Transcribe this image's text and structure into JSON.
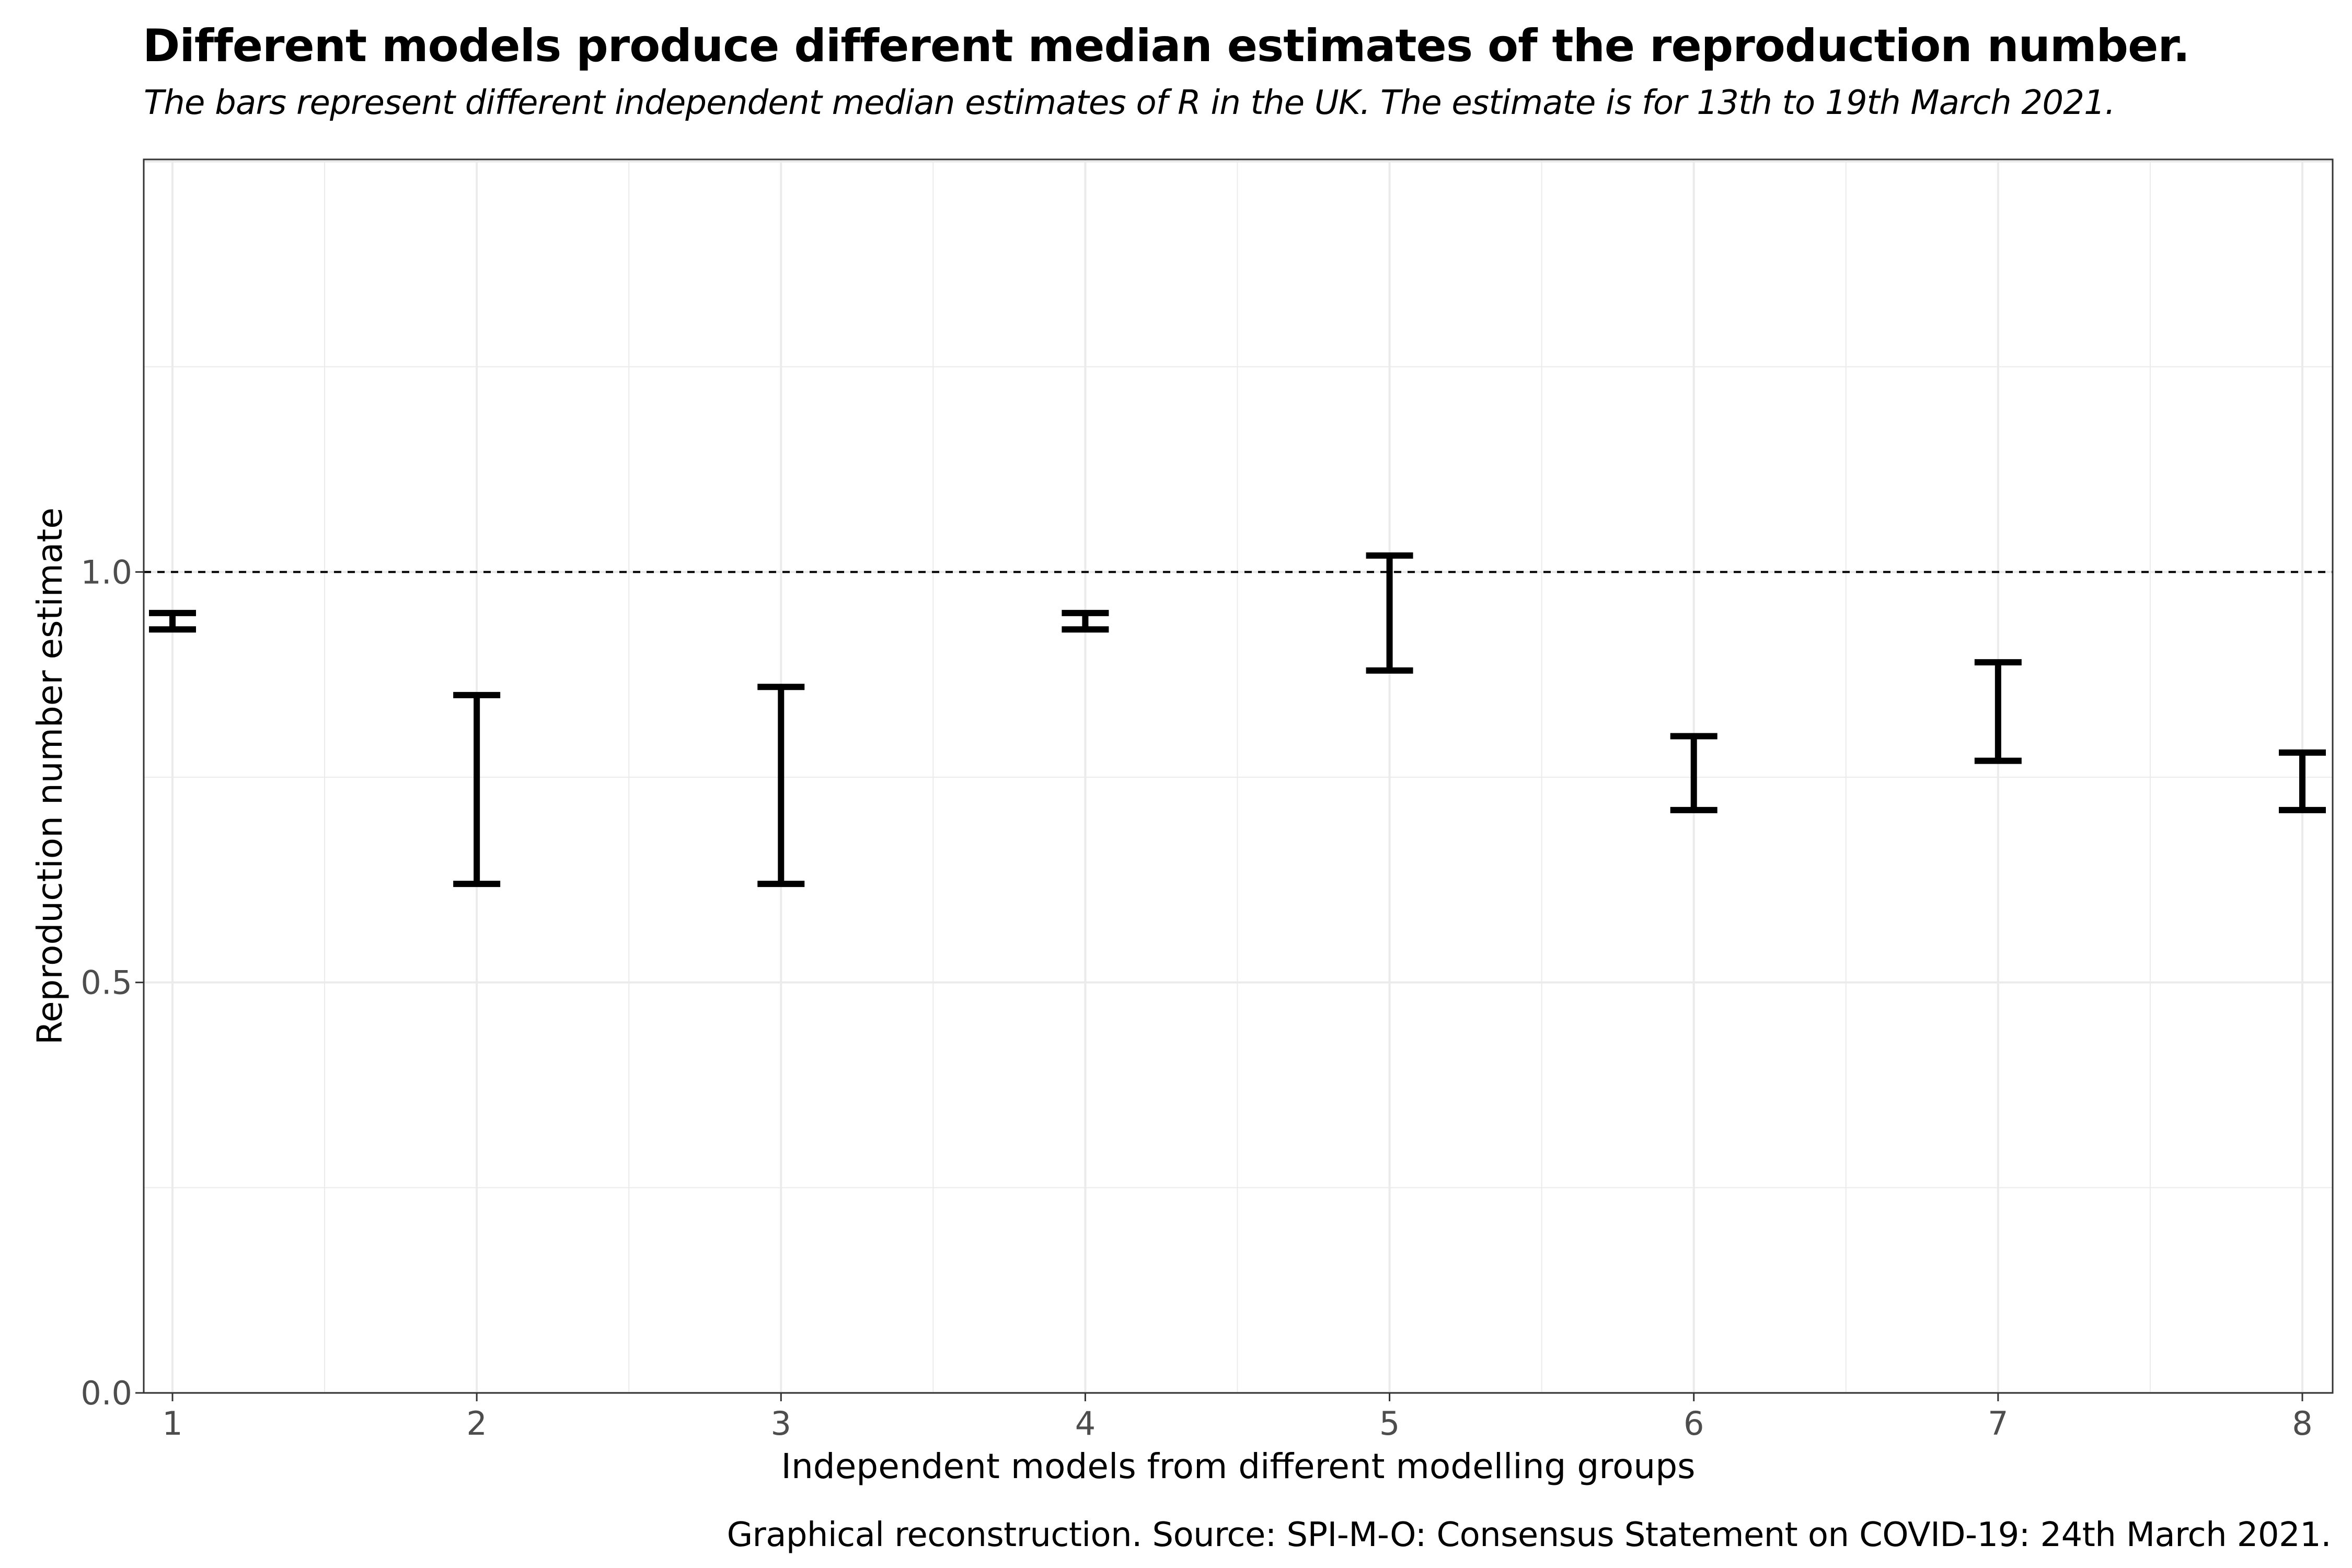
{
  "chart_data": {
    "type": "errorbar",
    "title": "Different models produce different median estimates of the reproduction number.",
    "subtitle": "The bars represent different independent median estimates of R in the UK. The estimate is for 13th to 19th March 2021.",
    "caption": "Graphical reconstruction. Source: SPI-M-O: Consensus Statement on COVID-19: 24th March 2021.",
    "xlabel": "Independent models from different modelling groups",
    "ylabel": "Reproduction number estimate",
    "categories": [
      "1",
      "2",
      "3",
      "4",
      "5",
      "6",
      "7",
      "8"
    ],
    "lower": [
      0.93,
      0.62,
      0.62,
      0.93,
      0.88,
      0.71,
      0.77,
      0.71
    ],
    "upper": [
      0.95,
      0.85,
      0.86,
      0.95,
      1.02,
      0.8,
      0.89,
      0.78
    ],
    "ylim": [
      0.0,
      1.5
    ],
    "yticks": [
      "0.0",
      "0.5",
      "1.0"
    ],
    "reference_line": 1.0,
    "grid": true,
    "colors": {
      "bar": "#000000",
      "grid": "#ebebeb",
      "panel_border": "#333333",
      "tick_text": "#4d4d4d"
    }
  }
}
